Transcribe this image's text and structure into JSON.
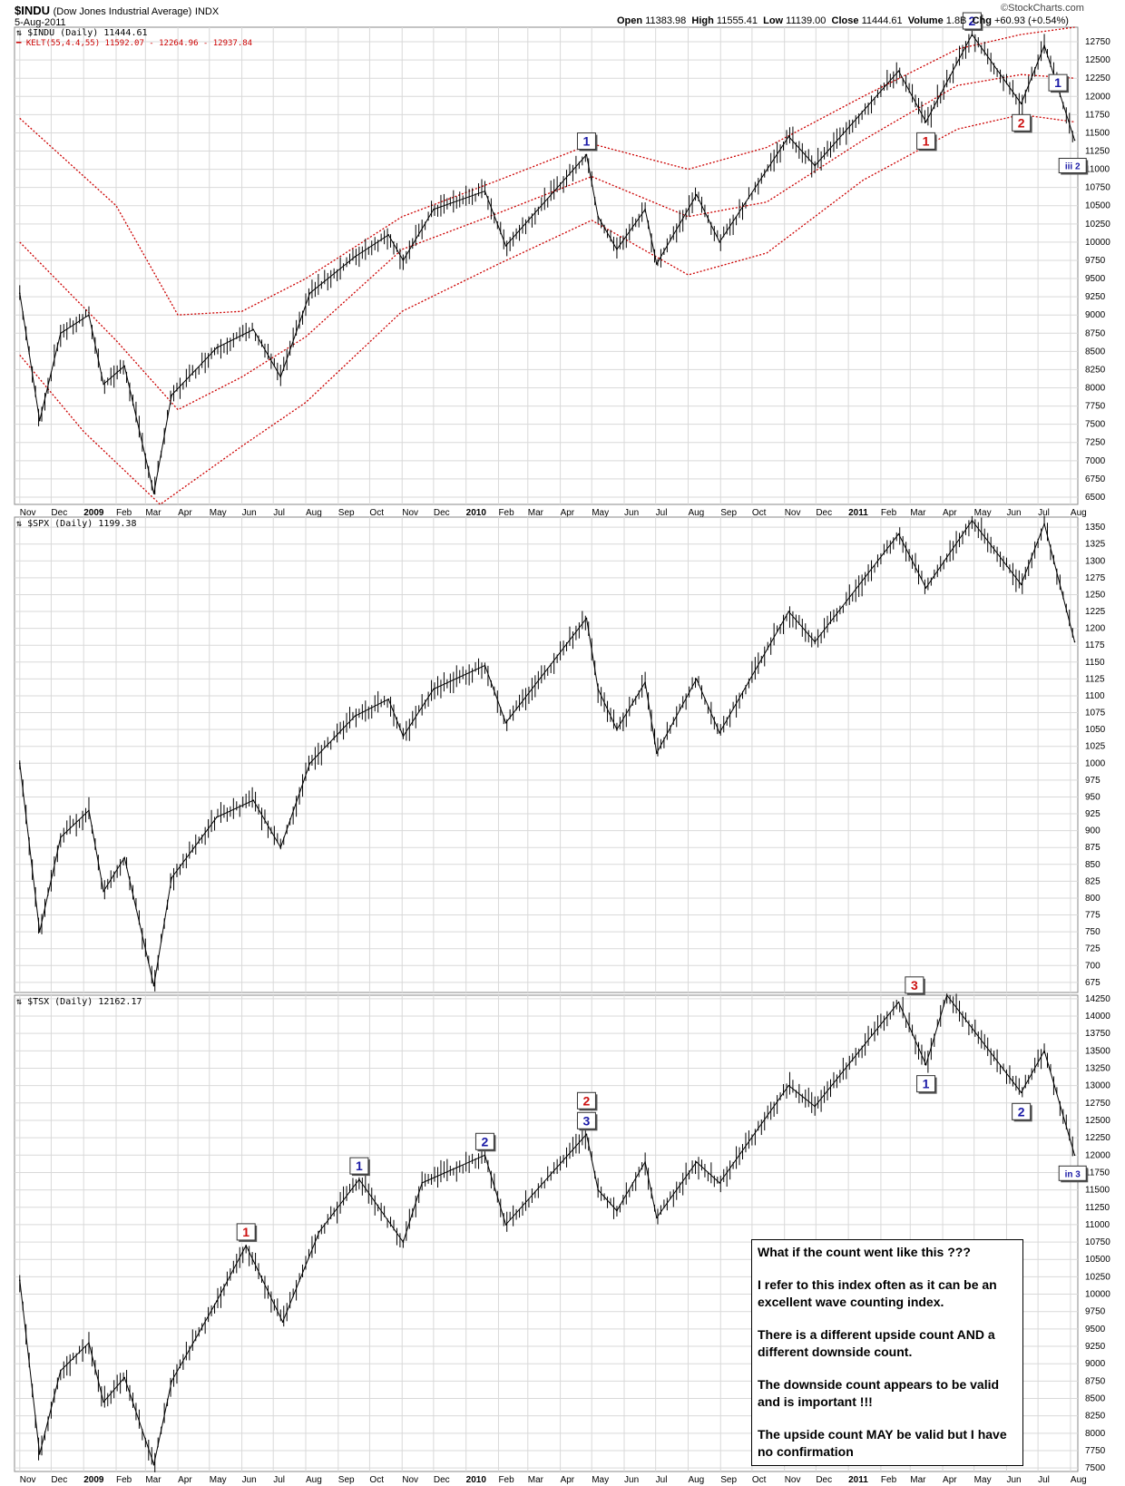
{
  "header": {
    "symbol": "$INDU",
    "name": "(Dow Jones Industrial Average)",
    "exchange": "INDX",
    "date": "5-Aug-2011",
    "open_label": "Open",
    "open": "11383.98",
    "high_label": "High",
    "high": "11555.41",
    "low_label": "Low",
    "low": "11139.00",
    "close_label": "Close",
    "close": "11444.61",
    "volume_label": "Volume",
    "volume": "1.8B",
    "change_label": "Chg",
    "change": "+60.93 (+0.54%)",
    "watermark": "©StockCharts.com"
  },
  "panels": {
    "indu": {
      "legend": "$INDU (Daily) 11444.61",
      "kelt_legend": "KELT(55,4.4,55) 11592.07 - 12264.96 - 12937.84"
    },
    "spx": {
      "legend": "$SPX (Daily) 1199.38"
    },
    "tsx": {
      "legend": "$TSX (Daily) 12162.17"
    }
  },
  "colors": {
    "price": "#000000",
    "keltner": "#cc0000",
    "label_blue": "#1a1aa6",
    "label_red": "#cc1111",
    "grid": "#d9d9d9"
  },
  "note": {
    "lines": [
      "What if the count went like this ???",
      "I refer to this index often as it can be an excellent wave counting index.",
      "There is a different upside count AND a different downside count.",
      "The downside count appears to be valid and is important !!!",
      "The upside count MAY be valid but I have no confirmation"
    ]
  },
  "chart_data": [
    {
      "type": "line",
      "series_name": "$INDU",
      "x_ticks": [
        "Nov",
        "Dec",
        "2009",
        "Feb",
        "Mar",
        "Apr",
        "May",
        "Jun",
        "Jul",
        "Aug",
        "Sep",
        "Oct",
        "Nov",
        "Dec",
        "2010",
        "Feb",
        "Mar",
        "Apr",
        "May",
        "Jun",
        "Jul",
        "Aug",
        "Sep",
        "Oct",
        "Nov",
        "Dec",
        "2011",
        "Feb",
        "Mar",
        "Apr",
        "May",
        "Jun",
        "Jul",
        "Aug"
      ],
      "y_ticks": [
        6500,
        6750,
        7000,
        7250,
        7500,
        7750,
        8000,
        8250,
        8500,
        8750,
        9000,
        9250,
        9500,
        9750,
        10000,
        10250,
        10500,
        10750,
        11000,
        11250,
        11500,
        11750,
        12000,
        12250,
        12500,
        12750
      ],
      "ylim": [
        6400,
        12950
      ],
      "values": [
        {
          "x": "2008-11-01",
          "y": 9300
        },
        {
          "x": "2008-11-20",
          "y": 7550
        },
        {
          "x": "2008-12-10",
          "y": 8750
        },
        {
          "x": "2009-01-06",
          "y": 9000
        },
        {
          "x": "2009-01-20",
          "y": 8050
        },
        {
          "x": "2009-02-09",
          "y": 8300
        },
        {
          "x": "2009-03-09",
          "y": 6550
        },
        {
          "x": "2009-03-26",
          "y": 7900
        },
        {
          "x": "2009-05-08",
          "y": 8550
        },
        {
          "x": "2009-06-12",
          "y": 8800
        },
        {
          "x": "2009-07-08",
          "y": 8150
        },
        {
          "x": "2009-08-05",
          "y": 9300
        },
        {
          "x": "2009-09-17",
          "y": 9800
        },
        {
          "x": "2009-10-19",
          "y": 10100
        },
        {
          "x": "2009-11-02",
          "y": 9750
        },
        {
          "x": "2009-12-01",
          "y": 10450
        },
        {
          "x": "2010-01-19",
          "y": 10700
        },
        {
          "x": "2010-02-08",
          "y": 9950
        },
        {
          "x": "2010-04-26",
          "y": 11200
        },
        {
          "x": "2010-05-07",
          "y": 10350
        },
        {
          "x": "2010-05-25",
          "y": 9900
        },
        {
          "x": "2010-06-21",
          "y": 10450
        },
        {
          "x": "2010-07-02",
          "y": 9700
        },
        {
          "x": "2010-08-09",
          "y": 10650
        },
        {
          "x": "2010-08-31",
          "y": 10000
        },
        {
          "x": "2010-11-05",
          "y": 11450
        },
        {
          "x": "2010-11-30",
          "y": 11050
        },
        {
          "x": "2011-02-18",
          "y": 12350
        },
        {
          "x": "2011-03-16",
          "y": 11650
        },
        {
          "x": "2011-04-29",
          "y": 12850
        },
        {
          "x": "2011-06-15",
          "y": 11900
        },
        {
          "x": "2011-07-07",
          "y": 12700
        },
        {
          "x": "2011-08-05",
          "y": 11400
        }
      ],
      "keltner": {
        "upper": [
          {
            "x": "2008-11-01",
            "y": 11700
          },
          {
            "x": "2009-02-01",
            "y": 10500
          },
          {
            "x": "2009-04-01",
            "y": 9000
          },
          {
            "x": "2009-06-01",
            "y": 9050
          },
          {
            "x": "2009-08-01",
            "y": 9500
          },
          {
            "x": "2009-11-01",
            "y": 10350
          },
          {
            "x": "2010-02-01",
            "y": 10850
          },
          {
            "x": "2010-05-01",
            "y": 11350
          },
          {
            "x": "2010-08-01",
            "y": 11000
          },
          {
            "x": "2010-10-15",
            "y": 11300
          },
          {
            "x": "2011-01-15",
            "y": 12000
          },
          {
            "x": "2011-04-15",
            "y": 12650
          },
          {
            "x": "2011-06-15",
            "y": 12850
          },
          {
            "x": "2011-08-05",
            "y": 12950
          }
        ],
        "middle": [
          {
            "x": "2008-11-01",
            "y": 10000
          },
          {
            "x": "2009-02-01",
            "y": 8650
          },
          {
            "x": "2009-04-01",
            "y": 7700
          },
          {
            "x": "2009-06-01",
            "y": 8150
          },
          {
            "x": "2009-08-01",
            "y": 8700
          },
          {
            "x": "2009-11-01",
            "y": 9900
          },
          {
            "x": "2010-02-01",
            "y": 10400
          },
          {
            "x": "2010-05-01",
            "y": 10900
          },
          {
            "x": "2010-08-01",
            "y": 10350
          },
          {
            "x": "2010-10-15",
            "y": 10550
          },
          {
            "x": "2011-01-15",
            "y": 11400
          },
          {
            "x": "2011-04-15",
            "y": 12150
          },
          {
            "x": "2011-06-15",
            "y": 12300
          },
          {
            "x": "2011-08-05",
            "y": 12250
          }
        ],
        "lower": [
          {
            "x": "2008-11-01",
            "y": 8450
          },
          {
            "x": "2009-01-01",
            "y": 7400
          },
          {
            "x": "2009-03-15",
            "y": 6400
          },
          {
            "x": "2009-06-01",
            "y": 7200
          },
          {
            "x": "2009-08-01",
            "y": 7800
          },
          {
            "x": "2009-11-01",
            "y": 9050
          },
          {
            "x": "2010-02-01",
            "y": 9700
          },
          {
            "x": "2010-05-01",
            "y": 10300
          },
          {
            "x": "2010-08-01",
            "y": 9550
          },
          {
            "x": "2010-10-15",
            "y": 9850
          },
          {
            "x": "2011-01-15",
            "y": 10850
          },
          {
            "x": "2011-04-15",
            "y": 11550
          },
          {
            "x": "2011-06-15",
            "y": 11750
          },
          {
            "x": "2011-08-05",
            "y": 11650
          }
        ]
      },
      "wave_labels": [
        {
          "text": "1",
          "x": "2010-04-26",
          "y": 11200,
          "color": "blue",
          "pos": "above"
        },
        {
          "text": "2",
          "x": "2011-04-29",
          "y": 12850,
          "color": "blue",
          "pos": "above"
        },
        {
          "text": "1",
          "x": "2011-03-16",
          "y": 11650,
          "color": "red",
          "pos": "below"
        },
        {
          "text": "2",
          "x": "2011-06-15",
          "y": 11900,
          "color": "red",
          "pos": "below"
        },
        {
          "text": "1",
          "x": "2011-07-20",
          "y": 12450,
          "color": "blue",
          "pos": "below"
        },
        {
          "text": "iii 2",
          "x": "2011-08-03",
          "y": 11300,
          "color": "blue",
          "pos": "below"
        }
      ]
    },
    {
      "type": "line",
      "series_name": "$SPX",
      "x_ticks": [],
      "y_ticks": [
        675,
        700,
        725,
        750,
        775,
        800,
        825,
        850,
        875,
        900,
        925,
        950,
        975,
        1000,
        1025,
        1050,
        1075,
        1100,
        1125,
        1150,
        1175,
        1200,
        1225,
        1250,
        1275,
        1300,
        1325,
        1350
      ],
      "ylim": [
        660,
        1365
      ],
      "values": [
        {
          "x": "2008-11-01",
          "y": 1000
        },
        {
          "x": "2008-11-20",
          "y": 750
        },
        {
          "x": "2008-12-10",
          "y": 890
        },
        {
          "x": "2009-01-06",
          "y": 930
        },
        {
          "x": "2009-01-20",
          "y": 810
        },
        {
          "x": "2009-02-09",
          "y": 860
        },
        {
          "x": "2009-03-09",
          "y": 670
        },
        {
          "x": "2009-03-26",
          "y": 830
        },
        {
          "x": "2009-05-08",
          "y": 920
        },
        {
          "x": "2009-06-12",
          "y": 945
        },
        {
          "x": "2009-07-08",
          "y": 875
        },
        {
          "x": "2009-08-05",
          "y": 1000
        },
        {
          "x": "2009-09-17",
          "y": 1070
        },
        {
          "x": "2009-10-19",
          "y": 1095
        },
        {
          "x": "2009-11-02",
          "y": 1040
        },
        {
          "x": "2009-12-01",
          "y": 1110
        },
        {
          "x": "2010-01-19",
          "y": 1145
        },
        {
          "x": "2010-02-08",
          "y": 1060
        },
        {
          "x": "2010-04-26",
          "y": 1215
        },
        {
          "x": "2010-05-07",
          "y": 1110
        },
        {
          "x": "2010-05-25",
          "y": 1050
        },
        {
          "x": "2010-06-21",
          "y": 1120
        },
        {
          "x": "2010-07-02",
          "y": 1015
        },
        {
          "x": "2010-08-09",
          "y": 1125
        },
        {
          "x": "2010-08-31",
          "y": 1045
        },
        {
          "x": "2010-11-05",
          "y": 1225
        },
        {
          "x": "2010-11-30",
          "y": 1180
        },
        {
          "x": "2011-02-18",
          "y": 1340
        },
        {
          "x": "2011-03-16",
          "y": 1260
        },
        {
          "x": "2011-04-29",
          "y": 1360
        },
        {
          "x": "2011-06-15",
          "y": 1265
        },
        {
          "x": "2011-07-07",
          "y": 1355
        },
        {
          "x": "2011-08-05",
          "y": 1180
        }
      ],
      "wave_labels": []
    },
    {
      "type": "line",
      "series_name": "$TSX",
      "x_ticks": [
        "Nov",
        "Dec",
        "2009",
        "Feb",
        "Mar",
        "Apr",
        "May",
        "Jun",
        "Jul",
        "Aug",
        "Sep",
        "Oct",
        "Nov",
        "Dec",
        "2010",
        "Feb",
        "Mar",
        "Apr",
        "May",
        "Jun",
        "Jul",
        "Aug",
        "Sep",
        "Oct",
        "Nov",
        "Dec",
        "2011",
        "Feb",
        "Mar",
        "Apr",
        "May",
        "Jun",
        "Jul",
        "Aug"
      ],
      "y_ticks": [
        7500,
        7750,
        8000,
        8250,
        8500,
        8750,
        9000,
        9250,
        9500,
        9750,
        10000,
        10250,
        10500,
        10750,
        11000,
        11250,
        11500,
        11750,
        12000,
        12250,
        12500,
        12750,
        13000,
        13250,
        13500,
        13750,
        14000,
        14250
      ],
      "ylim": [
        7450,
        14300
      ],
      "values": [
        {
          "x": "2008-11-01",
          "y": 10200
        },
        {
          "x": "2008-11-20",
          "y": 7700
        },
        {
          "x": "2008-12-10",
          "y": 8900
        },
        {
          "x": "2009-01-06",
          "y": 9300
        },
        {
          "x": "2009-01-20",
          "y": 8450
        },
        {
          "x": "2009-02-09",
          "y": 8800
        },
        {
          "x": "2009-03-09",
          "y": 7550
        },
        {
          "x": "2009-03-26",
          "y": 8750
        },
        {
          "x": "2009-05-08",
          "y": 9900
        },
        {
          "x": "2009-06-05",
          "y": 10700
        },
        {
          "x": "2009-07-10",
          "y": 9600
        },
        {
          "x": "2009-08-14",
          "y": 10900
        },
        {
          "x": "2009-09-21",
          "y": 11650
        },
        {
          "x": "2009-11-02",
          "y": 10750
        },
        {
          "x": "2009-11-20",
          "y": 11600
        },
        {
          "x": "2010-01-19",
          "y": 12000
        },
        {
          "x": "2010-02-08",
          "y": 11000
        },
        {
          "x": "2010-04-26",
          "y": 12300
        },
        {
          "x": "2010-05-07",
          "y": 11500
        },
        {
          "x": "2010-05-25",
          "y": 11200
        },
        {
          "x": "2010-06-21",
          "y": 11900
        },
        {
          "x": "2010-07-02",
          "y": 11100
        },
        {
          "x": "2010-08-09",
          "y": 11900
        },
        {
          "x": "2010-08-31",
          "y": 11600
        },
        {
          "x": "2010-11-05",
          "y": 13000
        },
        {
          "x": "2010-11-30",
          "y": 12700
        },
        {
          "x": "2011-02-18",
          "y": 14200
        },
        {
          "x": "2011-03-16",
          "y": 13300
        },
        {
          "x": "2011-04-05",
          "y": 14300
        },
        {
          "x": "2011-06-15",
          "y": 12900
        },
        {
          "x": "2011-07-07",
          "y": 13500
        },
        {
          "x": "2011-08-05",
          "y": 12000
        }
      ],
      "wave_labels": [
        {
          "text": "1",
          "x": "2009-06-05",
          "y": 10700,
          "color": "red",
          "pos": "above"
        },
        {
          "text": "1",
          "x": "2009-09-21",
          "y": 11650,
          "color": "blue",
          "pos": "above"
        },
        {
          "text": "2",
          "x": "2010-01-19",
          "y": 12000,
          "color": "blue",
          "pos": "above"
        },
        {
          "text": "2",
          "x": "2010-04-26",
          "y": 12300,
          "color": "red",
          "pos": "above2"
        },
        {
          "text": "3",
          "x": "2010-04-26",
          "y": 12300,
          "color": "blue",
          "pos": "above"
        },
        {
          "text": "3",
          "x": "2011-03-05",
          "y": 14250,
          "color": "red",
          "pos": "above"
        },
        {
          "text": "1",
          "x": "2011-03-16",
          "y": 13300,
          "color": "blue",
          "pos": "below"
        },
        {
          "text": "2",
          "x": "2011-06-15",
          "y": 12900,
          "color": "blue",
          "pos": "below"
        },
        {
          "text": "in 3",
          "x": "2011-08-03",
          "y": 12000,
          "color": "blue",
          "pos": "below"
        }
      ]
    }
  ]
}
